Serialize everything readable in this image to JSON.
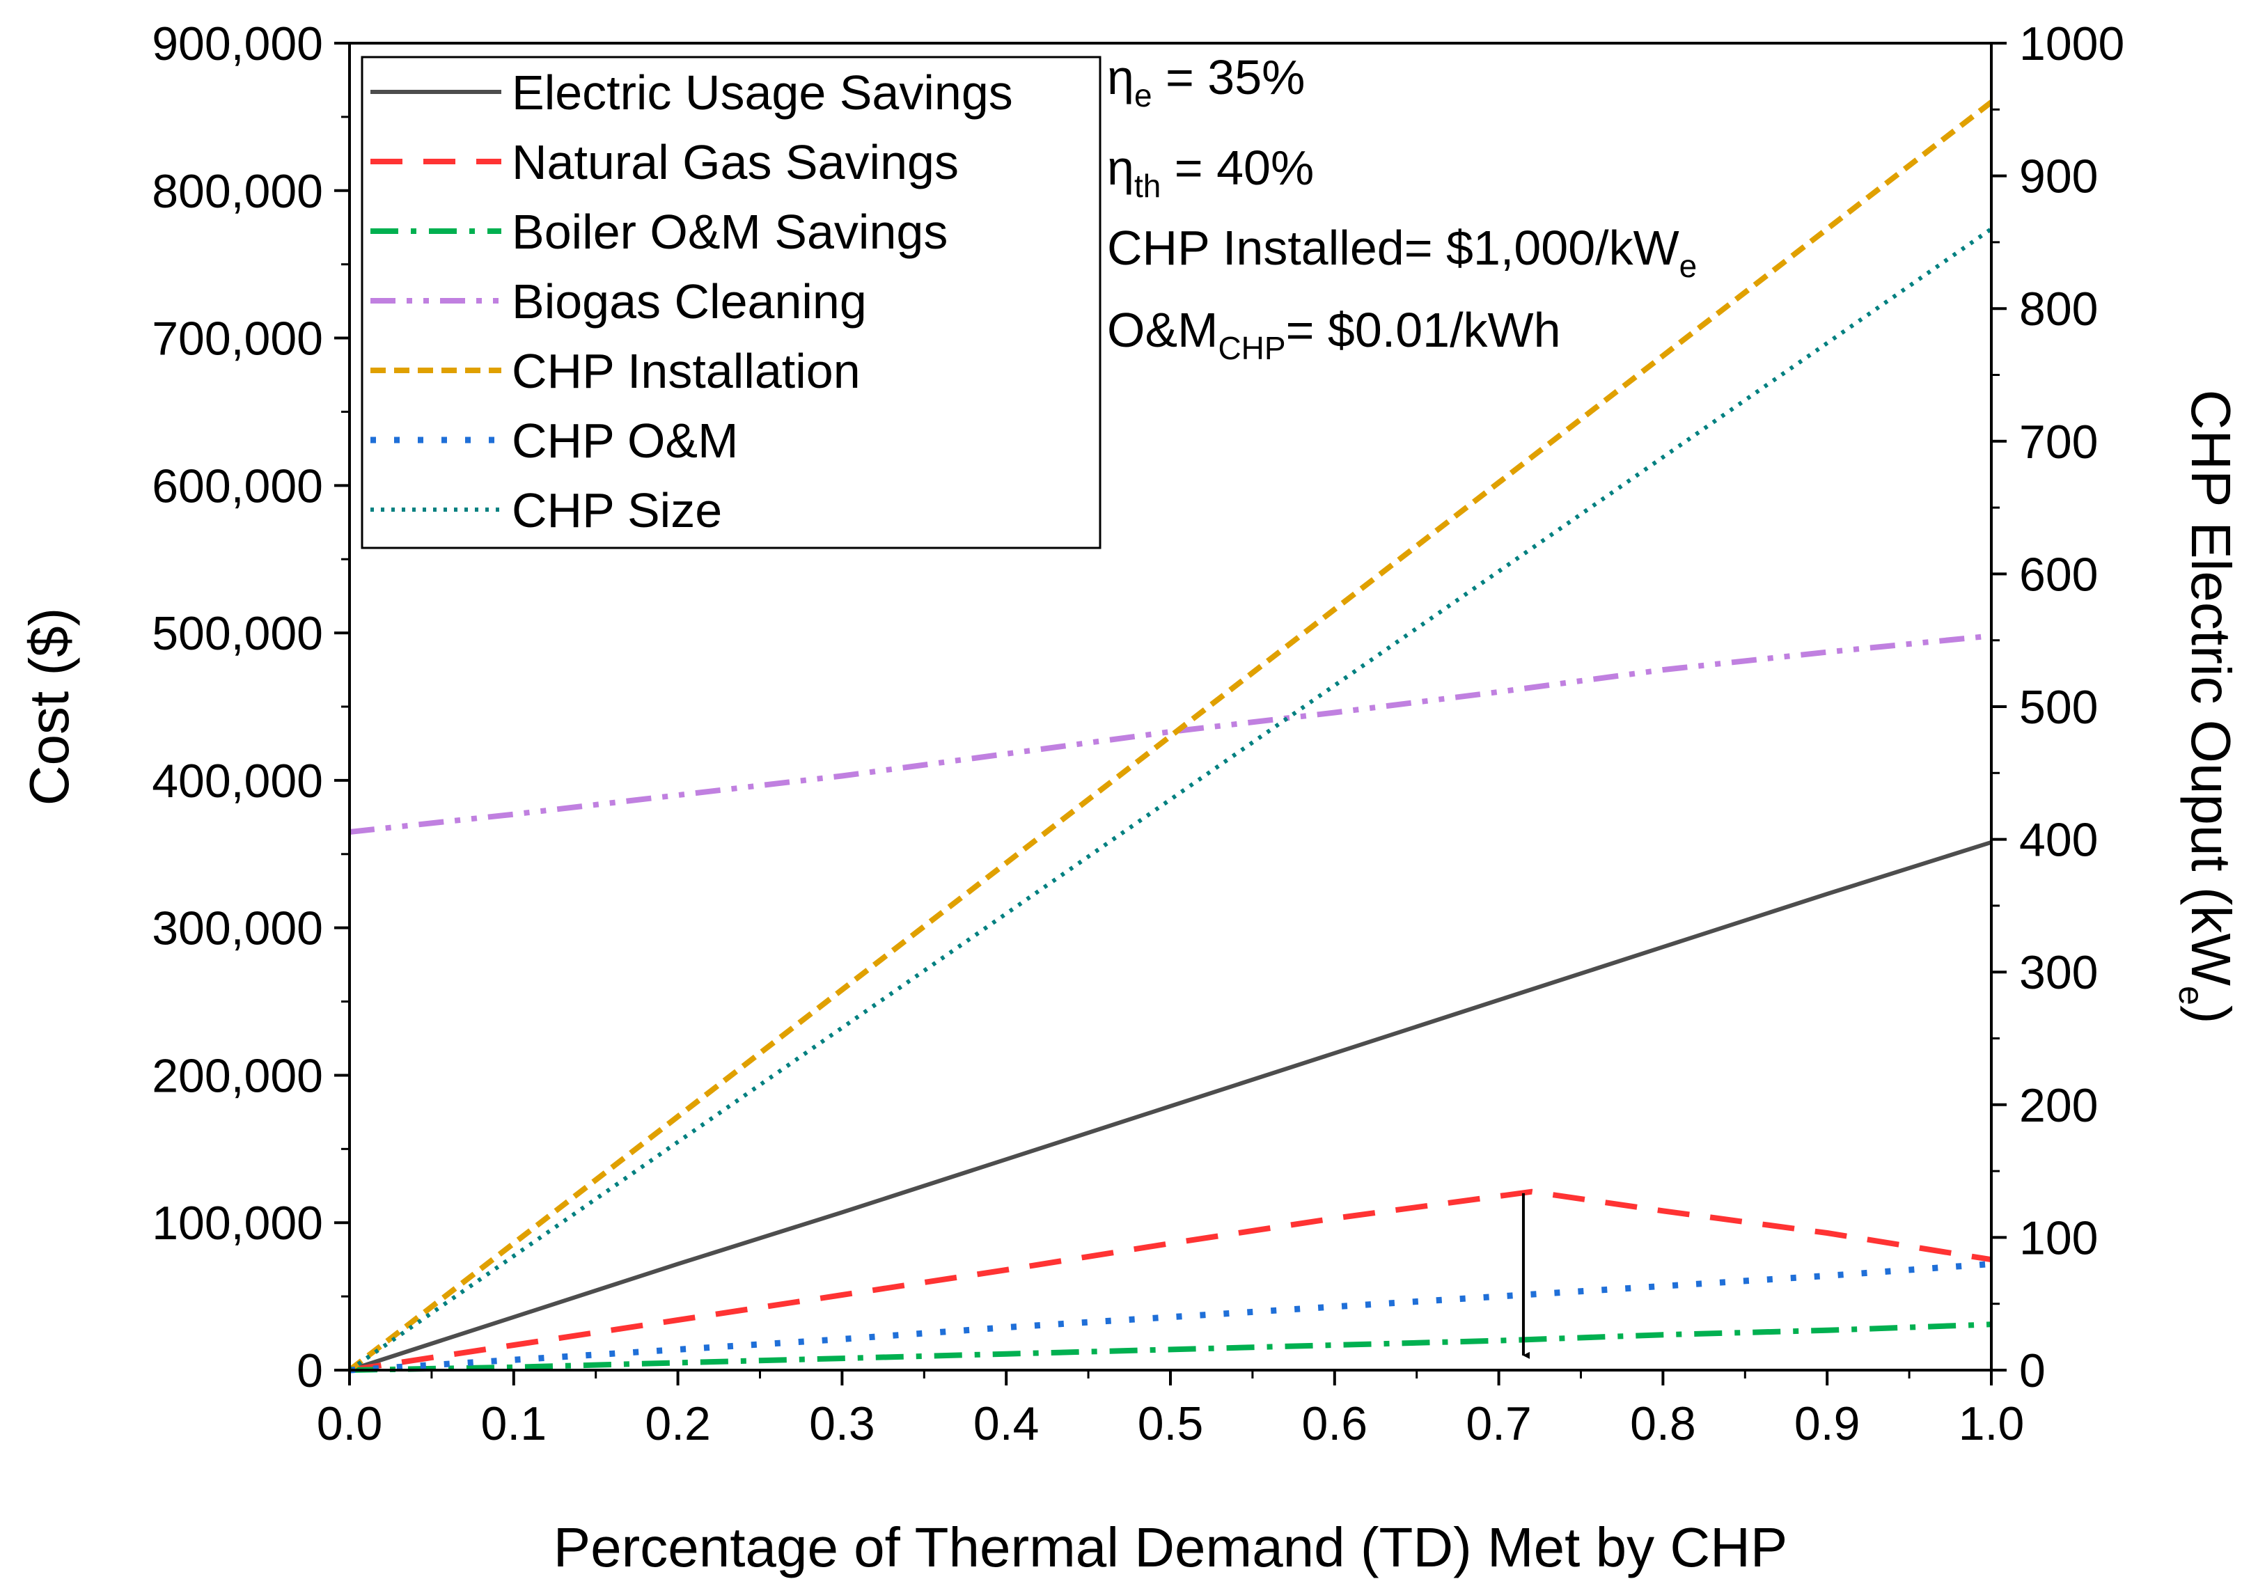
{
  "chart_data": {
    "type": "line",
    "xlabel": "Percentage of Thermal Demand (TD) Met by CHP",
    "ylabel": "Cost ($)",
    "y2label": "CHP Electric Ouput (kW",
    "y2label_sub": "e",
    "y2label_close": ")",
    "xlim": [
      0,
      1
    ],
    "ylim": [
      0,
      900000
    ],
    "y2lim": [
      0,
      1000
    ],
    "x_ticks": [
      "0.0",
      "0.1",
      "0.2",
      "0.3",
      "0.4",
      "0.5",
      "0.6",
      "0.7",
      "0.8",
      "0.9",
      "1.0"
    ],
    "y_ticks": [
      "0",
      "100,000",
      "200,000",
      "300,000",
      "400,000",
      "500,000",
      "600,000",
      "700,000",
      "800,000",
      "900,000"
    ],
    "y2_ticks": [
      "0",
      "100",
      "200",
      "300",
      "400",
      "500",
      "600",
      "700",
      "800",
      "900",
      "1000"
    ],
    "legend_position": "top-left",
    "annotations": [
      {
        "main": "η",
        "sub": "e",
        "tail": " = 35%"
      },
      {
        "main": "η",
        "sub": "th",
        "tail": " = 40%"
      },
      {
        "main": "CHP Installed= $1,000/kW",
        "sub": "e",
        "tail": ""
      },
      {
        "main": "O&M",
        "sub": "CHP",
        "tail": "= $0.01/kWh"
      }
    ],
    "arrow": {
      "x": 0.715,
      "from_y": 120000,
      "to_y": 10000
    },
    "series": [
      {
        "name": "Electric Usage Savings",
        "color": "#4d4d4d",
        "dash": "solid",
        "axis": "left",
        "x": [
          0.0,
          0.1,
          0.2,
          0.3,
          0.4,
          0.5,
          0.6,
          0.7,
          0.8,
          0.9,
          1.0
        ],
        "y": [
          0,
          36000,
          72000,
          107000,
          143000,
          179000,
          215000,
          251000,
          287000,
          323000,
          358000
        ]
      },
      {
        "name": "Natural Gas Savings",
        "color": "#ff3333",
        "dash": "long-dash",
        "axis": "left",
        "x": [
          0.0,
          0.1,
          0.2,
          0.3,
          0.4,
          0.5,
          0.6,
          0.7,
          0.72,
          0.8,
          0.9,
          1.0
        ],
        "y": [
          0,
          17000,
          34000,
          51000,
          68000,
          86000,
          103000,
          118000,
          121000,
          108000,
          93000,
          75000
        ]
      },
      {
        "name": "Boiler O&M Savings",
        "color": "#00b050",
        "dash": "dash-dot",
        "axis": "left",
        "x": [
          0.0,
          0.1,
          0.2,
          0.3,
          0.4,
          0.5,
          0.6,
          0.7,
          0.8,
          0.9,
          1.0
        ],
        "y": [
          0,
          2000,
          5000,
          8000,
          11000,
          14000,
          17000,
          20000,
          24000,
          27000,
          31000
        ]
      },
      {
        "name": "Biogas Cleaning",
        "color": "#c080e0",
        "dash": "dash-dot-dot",
        "axis": "left",
        "x": [
          0.0,
          0.1,
          0.2,
          0.3,
          0.4,
          0.5,
          0.6,
          0.7,
          0.8,
          0.9,
          1.0
        ],
        "y": [
          365000,
          377000,
          390000,
          403000,
          418000,
          433000,
          446000,
          460000,
          475000,
          487000,
          498000
        ]
      },
      {
        "name": "CHP Installation",
        "color": "#e0a000",
        "dash": "short-dash",
        "axis": "left",
        "x": [
          0.0,
          0.1,
          0.2,
          0.3,
          0.4,
          0.5,
          0.6,
          0.7,
          0.8,
          0.9,
          1.0
        ],
        "y": [
          0,
          86000,
          172000,
          258000,
          344000,
          430000,
          516000,
          602000,
          688000,
          774000,
          860000
        ]
      },
      {
        "name": "CHP O&M",
        "color": "#1f6fd8",
        "dash": "dot",
        "axis": "left",
        "x": [
          0.0,
          0.1,
          0.2,
          0.3,
          0.4,
          0.5,
          0.6,
          0.7,
          0.8,
          0.9,
          1.0
        ],
        "y": [
          0,
          7000,
          14000,
          21000,
          29000,
          36000,
          43000,
          50000,
          57000,
          64000,
          72000
        ]
      },
      {
        "name": "CHP Size",
        "color": "#008080",
        "dash": "fine-dot",
        "axis": "right",
        "x": [
          0.0,
          0.1,
          0.2,
          0.3,
          0.4,
          0.5,
          0.6,
          0.7,
          0.8,
          0.9,
          1.0
        ],
        "y": [
          0,
          86,
          172,
          258,
          344,
          430,
          516,
          602,
          688,
          774,
          860
        ]
      }
    ]
  }
}
